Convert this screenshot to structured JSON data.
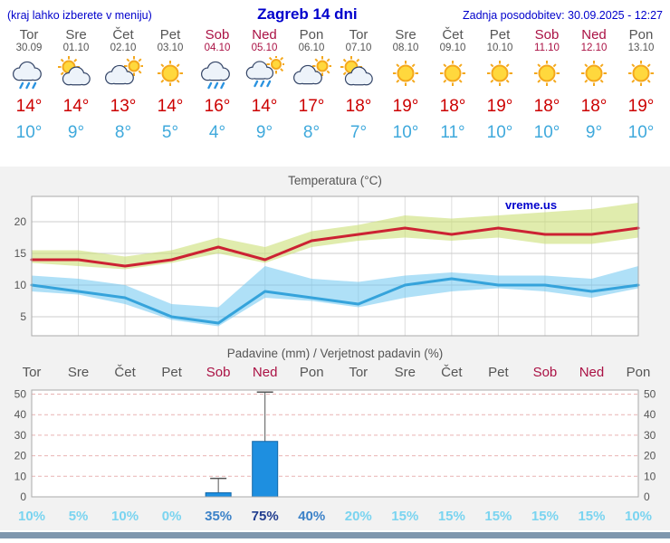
{
  "header": {
    "left": "(kraj lahko izberete v meniju)",
    "title": "Zagreb 14 dni",
    "updated": "Zadnja posodobitev: 30.09.2025 - 12:27"
  },
  "colors": {
    "accent_blue": "#0000CC",
    "temp_high": "#CC0000",
    "temp_low": "#3FA9DC",
    "weekend_red": "#AA1144",
    "prob_light": "#7AD4F0",
    "prob_medium": "#3C82C8",
    "prob_dark": "#223E8F",
    "panel_bg": "#F2F2F2",
    "footer_bar": "#7F97AE"
  },
  "forecast": {
    "days": [
      {
        "name": "Tor",
        "date": "30.09",
        "weekend": false,
        "icon": "rain",
        "hi": "14°",
        "lo": "10°"
      },
      {
        "name": "Sre",
        "date": "01.10",
        "weekend": false,
        "icon": "partly",
        "hi": "14°",
        "lo": "9°"
      },
      {
        "name": "Čet",
        "date": "02.10",
        "weekend": false,
        "icon": "cloudy",
        "hi": "13°",
        "lo": "8°"
      },
      {
        "name": "Pet",
        "date": "03.10",
        "weekend": false,
        "icon": "sun",
        "hi": "14°",
        "lo": "5°"
      },
      {
        "name": "Sob",
        "date": "04.10",
        "weekend": true,
        "icon": "rain",
        "hi": "16°",
        "lo": "4°"
      },
      {
        "name": "Ned",
        "date": "05.10",
        "weekend": true,
        "icon": "showers",
        "hi": "14°",
        "lo": "9°"
      },
      {
        "name": "Pon",
        "date": "06.10",
        "weekend": false,
        "icon": "cloudy",
        "hi": "17°",
        "lo": "8°"
      },
      {
        "name": "Tor",
        "date": "07.10",
        "weekend": false,
        "icon": "partly",
        "hi": "18°",
        "lo": "7°"
      },
      {
        "name": "Sre",
        "date": "08.10",
        "weekend": false,
        "icon": "sun",
        "hi": "19°",
        "lo": "10°"
      },
      {
        "name": "Čet",
        "date": "09.10",
        "weekend": false,
        "icon": "sun",
        "hi": "18°",
        "lo": "11°"
      },
      {
        "name": "Pet",
        "date": "10.10",
        "weekend": false,
        "icon": "sun",
        "hi": "19°",
        "lo": "10°"
      },
      {
        "name": "Sob",
        "date": "11.10",
        "weekend": true,
        "icon": "sun",
        "hi": "18°",
        "lo": "10°"
      },
      {
        "name": "Ned",
        "date": "12.10",
        "weekend": true,
        "icon": "sun",
        "hi": "18°",
        "lo": "9°"
      },
      {
        "name": "Pon",
        "date": "13.10",
        "weekend": false,
        "icon": "sun",
        "hi": "19°",
        "lo": "10°"
      }
    ]
  },
  "chart_data": [
    {
      "type": "line",
      "title": "Temperatura (°C)",
      "watermark": "vreme.us",
      "ylim": [
        2,
        24
      ],
      "yticks": [
        5,
        10,
        15,
        20
      ],
      "x_days": [
        "Tor",
        "Sre",
        "Čet",
        "Pet",
        "Sob",
        "Ned",
        "Pon",
        "Tor",
        "Sre",
        "Čet",
        "Pet",
        "Sob",
        "Ned",
        "Pon"
      ],
      "series": [
        {
          "name": "max-temp",
          "color": "#CC2233",
          "values": [
            14,
            14,
            13,
            14,
            16,
            14,
            17,
            18,
            19,
            18,
            19,
            18,
            18,
            19
          ]
        },
        {
          "name": "min-temp",
          "color": "#35A3DB",
          "values": [
            10,
            9,
            8,
            5,
            4,
            9,
            8,
            7,
            10,
            11,
            10,
            10,
            9,
            10
          ]
        }
      ],
      "bands": [
        {
          "name": "max-temp-range",
          "color": "rgba(203,224,118,0.60)",
          "upper": [
            15.5,
            15.5,
            14.5,
            15.5,
            17.5,
            16,
            18.5,
            19.5,
            21,
            20.5,
            21,
            21.5,
            22,
            23
          ],
          "lower": [
            13.5,
            13,
            12.5,
            13.5,
            15,
            13.5,
            16,
            17,
            17.5,
            17,
            17.5,
            16.5,
            16.5,
            17.5
          ]
        },
        {
          "name": "min-temp-range",
          "color": "rgba(110,198,240,0.55)",
          "upper": [
            11.5,
            11,
            10,
            7,
            6.5,
            13,
            11,
            10.5,
            11.5,
            12,
            11.5,
            11.5,
            11,
            13
          ],
          "lower": [
            9,
            8.5,
            7,
            4.5,
            3.5,
            8,
            7.5,
            6.5,
            8,
            9,
            9.5,
            9,
            8,
            9.5
          ]
        }
      ]
    },
    {
      "type": "bar",
      "title": "Padavine (mm) / Verjetnost padavin (%)",
      "ylim": [
        0,
        52
      ],
      "yticks": [
        0,
        10,
        20,
        30,
        40,
        50
      ],
      "bar_color": "#1E8FE0",
      "bar_border": "#1468A8",
      "whisker_color": "#555555",
      "x_labels": [
        {
          "label": "Tor",
          "weekend": false
        },
        {
          "label": "Sre",
          "weekend": false
        },
        {
          "label": "Čet",
          "weekend": false
        },
        {
          "label": "Pet",
          "weekend": false
        },
        {
          "label": "Sob",
          "weekend": true
        },
        {
          "label": "Ned",
          "weekend": true
        },
        {
          "label": "Pon",
          "weekend": false
        },
        {
          "label": "Tor",
          "weekend": false
        },
        {
          "label": "Sre",
          "weekend": false
        },
        {
          "label": "Čet",
          "weekend": false
        },
        {
          "label": "Pet",
          "weekend": false
        },
        {
          "label": "Sob",
          "weekend": true
        },
        {
          "label": "Ned",
          "weekend": true
        },
        {
          "label": "Pon",
          "weekend": false
        }
      ],
      "precip_mm": [
        0,
        0,
        0,
        0,
        2,
        27,
        0,
        0,
        0,
        0,
        0,
        0,
        0,
        0
      ],
      "precip_max_mm": [
        0,
        0,
        0,
        0,
        9,
        51,
        0,
        0,
        0,
        0,
        0,
        0,
        0,
        0
      ],
      "probability": [
        {
          "label": "10%",
          "tone": "light"
        },
        {
          "label": "5%",
          "tone": "light"
        },
        {
          "label": "10%",
          "tone": "light"
        },
        {
          "label": "0%",
          "tone": "light"
        },
        {
          "label": "35%",
          "tone": "medium"
        },
        {
          "label": "75%",
          "tone": "dark"
        },
        {
          "label": "40%",
          "tone": "medium"
        },
        {
          "label": "20%",
          "tone": "light"
        },
        {
          "label": "15%",
          "tone": "light"
        },
        {
          "label": "15%",
          "tone": "light"
        },
        {
          "label": "15%",
          "tone": "light"
        },
        {
          "label": "15%",
          "tone": "light"
        },
        {
          "label": "15%",
          "tone": "light"
        },
        {
          "label": "10%",
          "tone": "light"
        }
      ]
    }
  ]
}
